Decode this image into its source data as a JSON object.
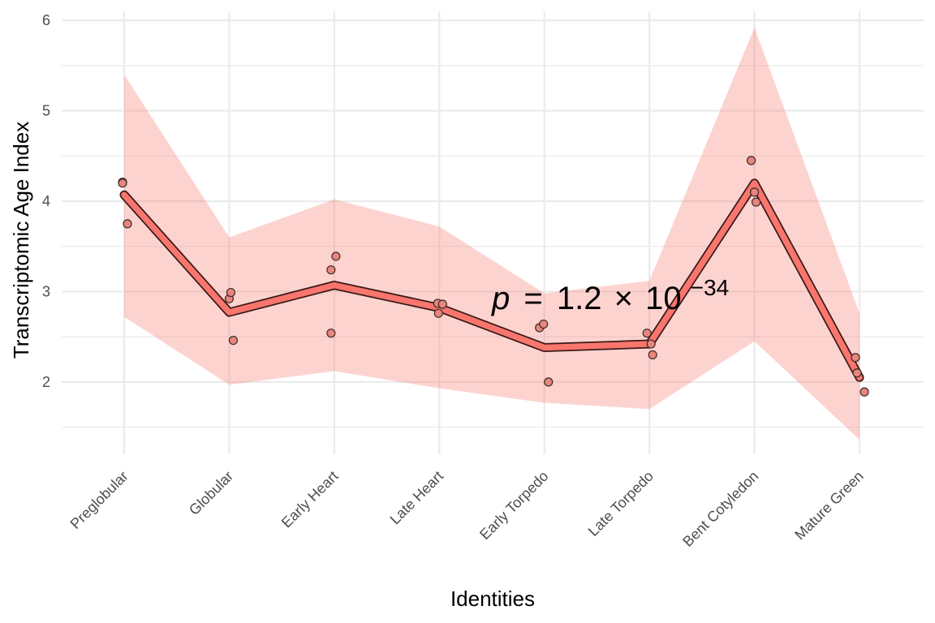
{
  "chart_data": {
    "type": "line",
    "xlabel": "Identities",
    "ylabel": "Transcriptomic Age Index",
    "categories": [
      "Preglobular",
      "Globular",
      "Early Heart",
      "Late Heart",
      "Early Torpedo",
      "Late Torpedo",
      "Bent Cotyledon",
      "Mature Green"
    ],
    "ylim": [
      1.2,
      6.1
    ],
    "y_ticks": [
      "2",
      "3",
      "4",
      "5",
      "6"
    ],
    "grid": true,
    "legend": "none",
    "series": [
      {
        "type": "line",
        "values": [
          4.07,
          2.77,
          3.07,
          2.82,
          2.38,
          2.42,
          4.2,
          2.05
        ]
      },
      {
        "type": "band",
        "lower": [
          2.72,
          1.97,
          2.12,
          1.93,
          1.77,
          1.7,
          2.45,
          1.36
        ],
        "upper": [
          5.4,
          3.6,
          4.02,
          3.72,
          2.98,
          3.12,
          5.92,
          2.76
        ]
      },
      {
        "type": "points",
        "values": [
          [
            4.21,
            4.2,
            3.75
          ],
          [
            2.92,
            2.99,
            2.46
          ],
          [
            3.24,
            3.39,
            2.54
          ],
          [
            2.87,
            2.86,
            2.76
          ],
          [
            2.6,
            2.64,
            2.0
          ],
          [
            2.54,
            2.42,
            2.3
          ],
          [
            4.45,
            4.1,
            3.99
          ],
          [
            2.27,
            2.1,
            1.89
          ]
        ]
      }
    ],
    "annotation": {
      "p_symbol": "p",
      "equals": "=",
      "mantissa": "1.2",
      "times": "×",
      "base": "10",
      "exponent": "−34"
    },
    "colors": {
      "line_fill": "#f8766d",
      "line_outline": "#3a1a18",
      "band": "#f8766d",
      "point_fill": "#e8857c",
      "grid": "#ebebeb"
    }
  }
}
